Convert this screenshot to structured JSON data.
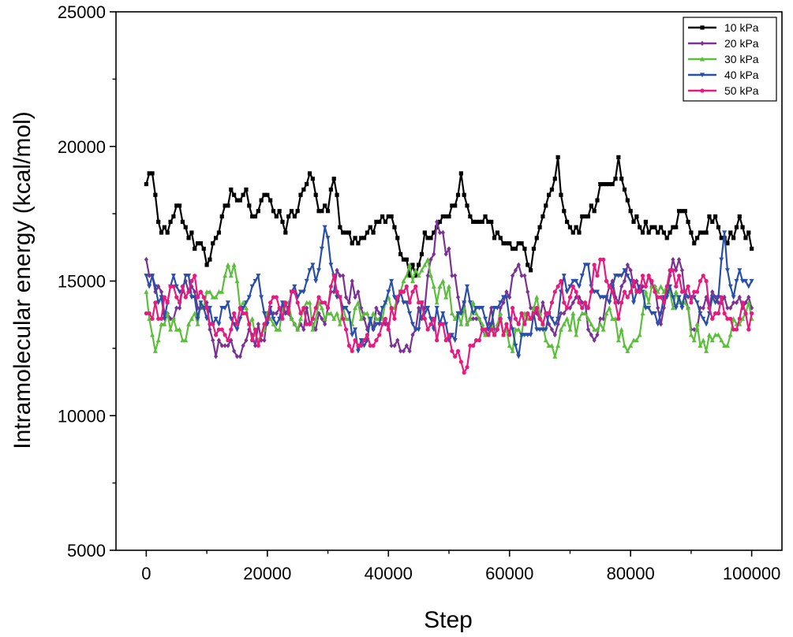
{
  "chart_data": {
    "type": "line",
    "xlabel": "Step",
    "ylabel": "Intramolecular energy (kcal/mol)",
    "xlim": [
      -5000,
      105000
    ],
    "ylim": [
      5000,
      25000
    ],
    "x_ticks": [
      0,
      20000,
      40000,
      60000,
      80000,
      100000
    ],
    "y_ticks": [
      5000,
      10000,
      15000,
      20000,
      25000
    ],
    "x_tick_labels": [
      "0",
      "20000",
      "40000",
      "60000",
      "80000",
      "100000"
    ],
    "y_tick_labels": [
      "5000",
      "10000",
      "15000",
      "20000",
      "25000"
    ],
    "x_step": 500,
    "legend_position": "top-right",
    "grid": false,
    "series": [
      {
        "name": "10 kPa",
        "color": "#000000",
        "marker": "square",
        "seed": 11,
        "keypoints": [
          [
            0,
            18300
          ],
          [
            1000,
            18800
          ],
          [
            2500,
            17000
          ],
          [
            5000,
            17400
          ],
          [
            8000,
            16500
          ],
          [
            10000,
            16000
          ],
          [
            12000,
            17200
          ],
          [
            14000,
            18500
          ],
          [
            16000,
            18300
          ],
          [
            18000,
            17500
          ],
          [
            20000,
            17800
          ],
          [
            23000,
            17300
          ],
          [
            25000,
            18000
          ],
          [
            27000,
            19100
          ],
          [
            28000,
            18000
          ],
          [
            29500,
            17300
          ],
          [
            31000,
            18400
          ],
          [
            32000,
            17000
          ],
          [
            34000,
            16200
          ],
          [
            36000,
            16500
          ],
          [
            38000,
            17200
          ],
          [
            41000,
            17000
          ],
          [
            43000,
            15500
          ],
          [
            44500,
            15200
          ],
          [
            46000,
            16500
          ],
          [
            48000,
            17600
          ],
          [
            51000,
            18000
          ],
          [
            52000,
            18800
          ],
          [
            54000,
            17500
          ],
          [
            56000,
            17000
          ],
          [
            58000,
            16600
          ],
          [
            60000,
            16000
          ],
          [
            62000,
            16500
          ],
          [
            63500,
            15300
          ],
          [
            65000,
            17300
          ],
          [
            67000,
            18300
          ],
          [
            68000,
            19400
          ],
          [
            69000,
            17300
          ],
          [
            71000,
            17000
          ],
          [
            73000,
            17700
          ],
          [
            75000,
            18300
          ],
          [
            77000,
            18500
          ],
          [
            78000,
            19400
          ],
          [
            80000,
            17500
          ],
          [
            82000,
            17000
          ],
          [
            85000,
            16800
          ],
          [
            88000,
            17300
          ],
          [
            91000,
            16500
          ],
          [
            94000,
            17200
          ],
          [
            96000,
            16800
          ],
          [
            98000,
            17100
          ],
          [
            100000,
            16300
          ]
        ]
      },
      {
        "name": "20 kPa",
        "color": "#7b3294",
        "marker": "diamond",
        "seed": 22,
        "keypoints": [
          [
            0,
            15200
          ],
          [
            3000,
            14000
          ],
          [
            6000,
            14500
          ],
          [
            10000,
            13500
          ],
          [
            13000,
            12500
          ],
          [
            15500,
            11500
          ],
          [
            17000,
            12300
          ],
          [
            20000,
            13800
          ],
          [
            23000,
            14200
          ],
          [
            26000,
            13500
          ],
          [
            29000,
            14000
          ],
          [
            32000,
            15000
          ],
          [
            35000,
            14500
          ],
          [
            38000,
            14000
          ],
          [
            41000,
            13000
          ],
          [
            43000,
            12200
          ],
          [
            46000,
            14000
          ],
          [
            48000,
            16500
          ],
          [
            50000,
            15500
          ],
          [
            53000,
            14000
          ],
          [
            56000,
            13500
          ],
          [
            59000,
            14000
          ],
          [
            62000,
            15500
          ],
          [
            64000,
            14000
          ],
          [
            67000,
            13500
          ],
          [
            70000,
            14000
          ],
          [
            73000,
            13300
          ],
          [
            76000,
            14000
          ],
          [
            79000,
            15500
          ],
          [
            82000,
            14500
          ],
          [
            85000,
            14000
          ],
          [
            88000,
            15800
          ],
          [
            90000,
            14000
          ],
          [
            93000,
            13800
          ],
          [
            96000,
            14200
          ],
          [
            100000,
            14000
          ]
        ]
      },
      {
        "name": "30 kPa",
        "color": "#5cbf3c",
        "marker": "uptriangle",
        "seed": 33,
        "keypoints": [
          [
            0,
            14000
          ],
          [
            1500,
            12400
          ],
          [
            4000,
            13500
          ],
          [
            7000,
            13000
          ],
          [
            10000,
            14000
          ],
          [
            14000,
            15500
          ],
          [
            17000,
            13500
          ],
          [
            20000,
            13200
          ],
          [
            24000,
            14000
          ],
          [
            28000,
            13300
          ],
          [
            31000,
            14000
          ],
          [
            35000,
            13500
          ],
          [
            38000,
            14000
          ],
          [
            40000,
            14500
          ],
          [
            43000,
            15300
          ],
          [
            46000,
            15800
          ],
          [
            49000,
            14500
          ],
          [
            52000,
            13500
          ],
          [
            55000,
            14000
          ],
          [
            58000,
            13500
          ],
          [
            61000,
            13200
          ],
          [
            64000,
            14000
          ],
          [
            67000,
            13000
          ],
          [
            70000,
            12800
          ],
          [
            73000,
            13800
          ],
          [
            76000,
            13500
          ],
          [
            79000,
            12500
          ],
          [
            82000,
            14000
          ],
          [
            85000,
            15200
          ],
          [
            88000,
            14000
          ],
          [
            91000,
            13000
          ],
          [
            94000,
            12500
          ],
          [
            97000,
            13000
          ],
          [
            100000,
            14000
          ]
        ]
      },
      {
        "name": "40 kPa",
        "color": "#2a4fa8",
        "marker": "downtriangle",
        "seed": 44,
        "keypoints": [
          [
            0,
            15600
          ],
          [
            3000,
            14000
          ],
          [
            6000,
            15500
          ],
          [
            9000,
            14000
          ],
          [
            12000,
            13500
          ],
          [
            15000,
            13800
          ],
          [
            18000,
            14500
          ],
          [
            21000,
            13800
          ],
          [
            25000,
            14500
          ],
          [
            28000,
            14800
          ],
          [
            29500,
            16300
          ],
          [
            32000,
            14500
          ],
          [
            35000,
            13000
          ],
          [
            38000,
            14000
          ],
          [
            41000,
            14500
          ],
          [
            44000,
            13500
          ],
          [
            47000,
            14000
          ],
          [
            50000,
            13500
          ],
          [
            53000,
            14200
          ],
          [
            56000,
            13500
          ],
          [
            59000,
            14000
          ],
          [
            61500,
            12300
          ],
          [
            64000,
            14000
          ],
          [
            67000,
            13500
          ],
          [
            70000,
            15000
          ],
          [
            73000,
            15500
          ],
          [
            76000,
            15000
          ],
          [
            79000,
            14500
          ],
          [
            82000,
            14000
          ],
          [
            85000,
            13500
          ],
          [
            88000,
            14500
          ],
          [
            91000,
            13200
          ],
          [
            94000,
            14000
          ],
          [
            95500,
            16200
          ],
          [
            97000,
            14000
          ],
          [
            100000,
            15400
          ]
        ]
      },
      {
        "name": "50 kPa",
        "color": "#e8197f",
        "marker": "circle",
        "seed": 55,
        "keypoints": [
          [
            0,
            13500
          ],
          [
            3000,
            14000
          ],
          [
            6000,
            14500
          ],
          [
            7500,
            15600
          ],
          [
            10000,
            14500
          ],
          [
            13000,
            13000
          ],
          [
            16000,
            13500
          ],
          [
            19000,
            13300
          ],
          [
            22000,
            13800
          ],
          [
            25000,
            14200
          ],
          [
            28000,
            13500
          ],
          [
            31000,
            14500
          ],
          [
            34000,
            13000
          ],
          [
            37000,
            12000
          ],
          [
            40000,
            13500
          ],
          [
            43000,
            14500
          ],
          [
            46000,
            13500
          ],
          [
            49000,
            13000
          ],
          [
            52000,
            11900
          ],
          [
            55000,
            13500
          ],
          [
            58000,
            13000
          ],
          [
            61000,
            14000
          ],
          [
            64000,
            13000
          ],
          [
            67000,
            13500
          ],
          [
            70000,
            14500
          ],
          [
            73000,
            15000
          ],
          [
            75000,
            15800
          ],
          [
            78000,
            14500
          ],
          [
            81000,
            15000
          ],
          [
            84000,
            14500
          ],
          [
            87000,
            15000
          ],
          [
            90000,
            14500
          ],
          [
            93000,
            14000
          ],
          [
            96000,
            14200
          ],
          [
            100000,
            13500
          ]
        ]
      }
    ]
  }
}
